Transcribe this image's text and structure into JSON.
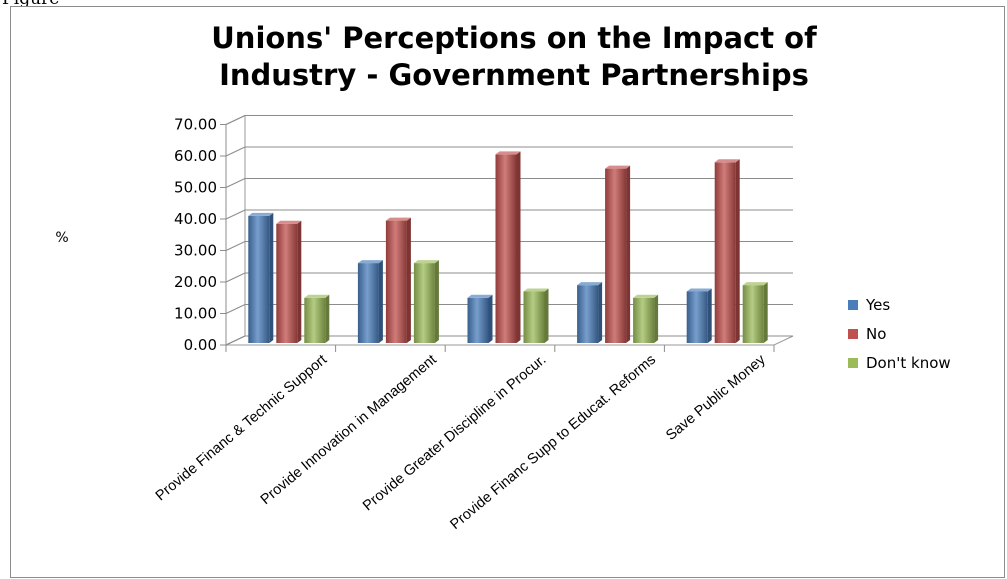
{
  "caption_fragment": "Figure",
  "chart_data": {
    "type": "bar",
    "title": [
      "Unions' Perceptions on the Impact of",
      "Industry - Government Partnerships"
    ],
    "ylabel": "%",
    "xlabel": "",
    "ylim": [
      0,
      70
    ],
    "yticks": [
      "0.00",
      "10.00",
      "20.00",
      "30.00",
      "40.00",
      "50.00",
      "60.00",
      "70.00"
    ],
    "categories": [
      "Provide Financ & Technic Support",
      "Provide Innovation in Management",
      "Provide Greater Discipline in Procur.",
      "Provide Financ Supp to Educat. Reforms",
      "Save Public Money"
    ],
    "series": [
      {
        "name": "Yes",
        "color": "#4a7ebb",
        "values": [
          41,
          26,
          15,
          19,
          17
        ]
      },
      {
        "name": "No",
        "color": "#c0504d",
        "values": [
          38.5,
          39.5,
          60.5,
          56,
          58
        ]
      },
      {
        "name": "Don't know",
        "color": "#9bbb59",
        "values": [
          15,
          26,
          17,
          15,
          19
        ]
      }
    ],
    "grid": true,
    "style": "3d-clustered-column",
    "legend_position": "right"
  }
}
